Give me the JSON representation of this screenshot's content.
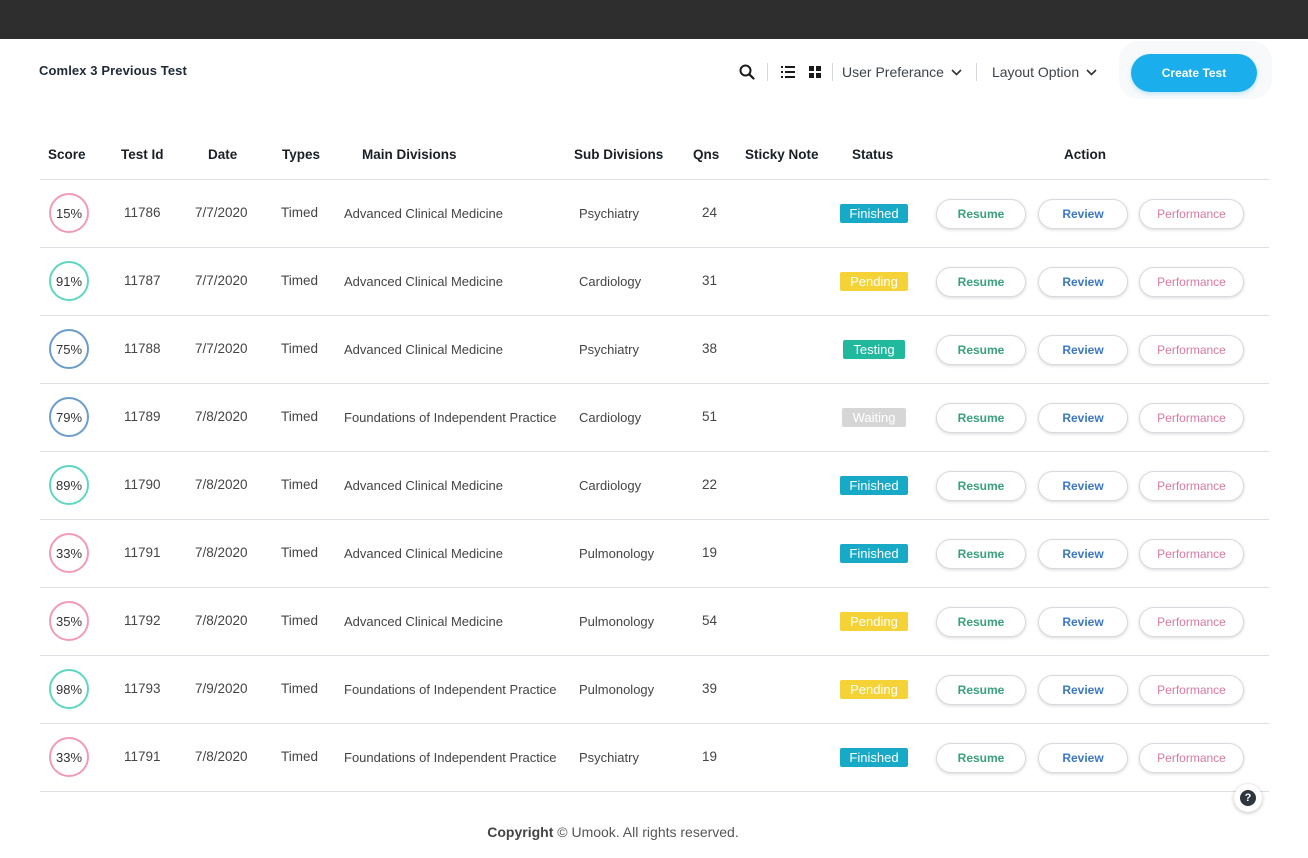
{
  "page": {
    "title": "Comlex 3 Previous Test"
  },
  "toolbar": {
    "user_pref_label": "User Preferance",
    "layout_label": "Layout Option",
    "create_label": "Create Test"
  },
  "columns": {
    "score": "Score",
    "test_id": "Test Id",
    "date": "Date",
    "types": "Types",
    "main": "Main Divisions",
    "sub": "Sub Divisions",
    "qns": "Qns",
    "sticky": "Sticky Note",
    "status": "Status",
    "action": "Action"
  },
  "actions": {
    "resume": "Resume",
    "review": "Review",
    "performance": "Performance"
  },
  "status_colors": {
    "Finished": "#17a9c6",
    "Pending": "#f5d236",
    "Testing": "#21b99e",
    "Waiting": "#d6d6d6"
  },
  "score_colors": {
    "pink": "#f29bb8",
    "teal": "#5fd6c2",
    "blue": "#6b9dcb"
  },
  "rows": [
    {
      "score": "15%",
      "score_color": "pink",
      "id": "11786",
      "date": "7/7/2020",
      "type": "Timed",
      "main": "Advanced Clinical Medicine",
      "sub": "Psychiatry",
      "qns": "24",
      "status": "Finished"
    },
    {
      "score": "91%",
      "score_color": "teal",
      "id": "11787",
      "date": "7/7/2020",
      "type": "Timed",
      "main": "Advanced Clinical Medicine",
      "sub": "Cardiology",
      "qns": "31",
      "status": "Pending"
    },
    {
      "score": "75%",
      "score_color": "blue",
      "id": "11788",
      "date": "7/7/2020",
      "type": "Timed",
      "main": "Advanced Clinical Medicine",
      "sub": "Psychiatry",
      "qns": "38",
      "status": "Testing"
    },
    {
      "score": "79%",
      "score_color": "blue",
      "id": "11789",
      "date": "7/8/2020",
      "type": "Timed",
      "main": "Foundations of Independent Practice",
      "sub": "Cardiology",
      "qns": "51",
      "status": "Waiting"
    },
    {
      "score": "89%",
      "score_color": "teal",
      "id": "11790",
      "date": "7/8/2020",
      "type": "Timed",
      "main": "Advanced Clinical Medicine",
      "sub": "Cardiology",
      "qns": "22",
      "status": "Finished"
    },
    {
      "score": "33%",
      "score_color": "pink",
      "id": "11791",
      "date": "7/8/2020",
      "type": "Timed",
      "main": "Advanced Clinical Medicine",
      "sub": "Pulmonology",
      "qns": "19",
      "status": "Finished"
    },
    {
      "score": "35%",
      "score_color": "pink",
      "id": "11792",
      "date": "7/8/2020",
      "type": "Timed",
      "main": "Advanced Clinical Medicine",
      "sub": "Pulmonology",
      "qns": "54",
      "status": "Pending"
    },
    {
      "score": "98%",
      "score_color": "teal",
      "id": "11793",
      "date": "7/9/2020",
      "type": "Timed",
      "main": "Foundations of Independent Practice",
      "sub": "Pulmonology",
      "qns": "39",
      "status": "Pending"
    },
    {
      "score": "33%",
      "score_color": "pink",
      "id": "11791",
      "date": "7/8/2020",
      "type": "Timed",
      "main": "Foundations of Independent Practice",
      "sub": "Psychiatry",
      "qns": "19",
      "status": "Finished"
    }
  ],
  "footer": {
    "copyright_bold": "Copyright",
    "copyright_rest": "© Umook. All rights reserved."
  },
  "help": {
    "glyph": "?"
  }
}
